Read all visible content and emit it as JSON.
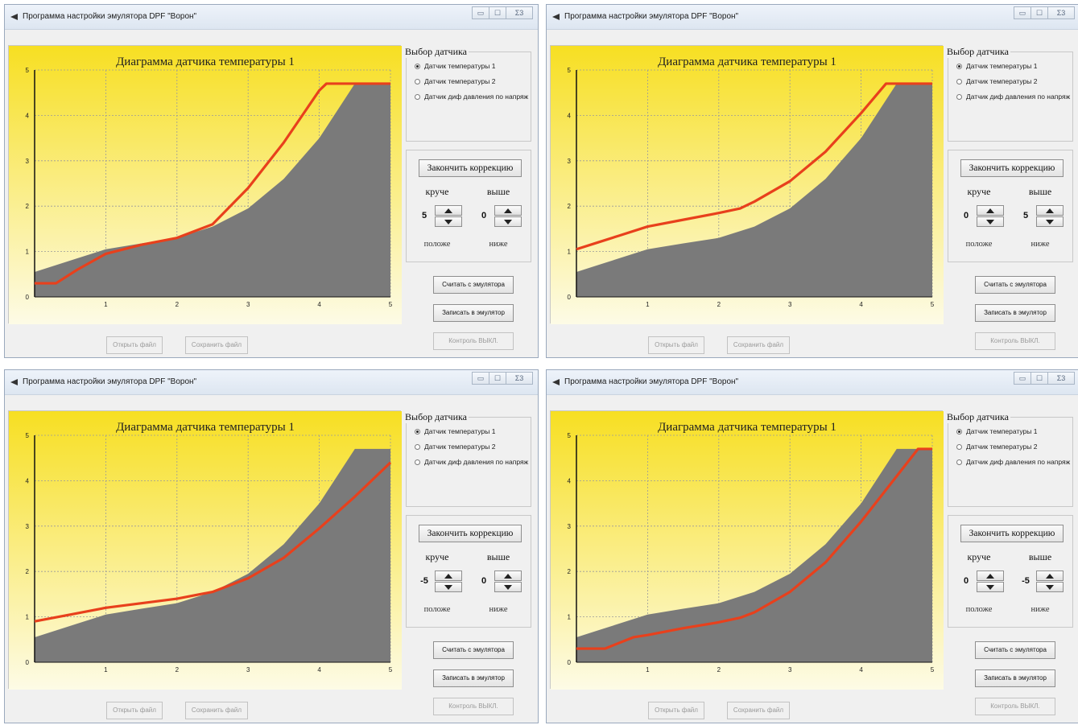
{
  "window_title": "Программа настройки эмулятора DPF \"Ворон\"",
  "window_buttons": {
    "minimize": "▭",
    "maximize": "☐",
    "close": "Σ3"
  },
  "chart_title": "Диаграмма датчика температуры 1",
  "sensor_group": {
    "title": "Выбор датчика",
    "options": [
      "Датчик температуры 1",
      "Датчик температуры 2",
      "Датчик диф давления по напряж"
    ],
    "selected": 0
  },
  "correction": {
    "finish_label": "Закончить коррекцию",
    "steep_label": "круче",
    "higher_label": "выше",
    "flatter_label": "положе",
    "lower_label": "ниже"
  },
  "buttons": {
    "read": "Считать с эмулятора",
    "write": "Записать в эмулятор",
    "control": "Контроль ВЫКЛ.",
    "open": "Открыть файл",
    "save": "Сохранить файл"
  },
  "colors": {
    "plot_top": "#f7df22",
    "plot_bottom": "#fdfbe6",
    "area": "#7a7a7a",
    "curve": "#e8401c"
  },
  "panels": [
    {
      "steep": "5",
      "higher": "0",
      "chart_data": {
        "type": "line",
        "x_ticks": [
          0,
          1,
          2,
          3,
          4,
          5
        ],
        "y_ticks": [
          0,
          1,
          2,
          3,
          4,
          5
        ],
        "xlim": [
          0,
          5
        ],
        "ylim": [
          0,
          5
        ],
        "base_area": [
          [
            0,
            0.55
          ],
          [
            0.3,
            0.7
          ],
          [
            0.6,
            0.85
          ],
          [
            1,
            1.05
          ],
          [
            1.5,
            1.18
          ],
          [
            2,
            1.3
          ],
          [
            2.5,
            1.55
          ],
          [
            3,
            1.95
          ],
          [
            3.5,
            2.6
          ],
          [
            4,
            3.5
          ],
          [
            4.5,
            4.7
          ],
          [
            5,
            4.7
          ]
        ],
        "curve": [
          [
            0,
            0.3
          ],
          [
            0.3,
            0.3
          ],
          [
            0.6,
            0.6
          ],
          [
            1,
            0.95
          ],
          [
            1.5,
            1.15
          ],
          [
            2,
            1.3
          ],
          [
            2.3,
            1.48
          ],
          [
            2.5,
            1.6
          ],
          [
            3,
            2.4
          ],
          [
            3.5,
            3.4
          ],
          [
            4,
            4.55
          ],
          [
            4.1,
            4.7
          ],
          [
            5,
            4.7
          ]
        ]
      }
    },
    {
      "steep": "0",
      "higher": "5",
      "chart_data": {
        "type": "line",
        "x_ticks": [
          0,
          1,
          2,
          3,
          4,
          5
        ],
        "y_ticks": [
          0,
          1,
          2,
          3,
          4,
          5
        ],
        "xlim": [
          0,
          5
        ],
        "ylim": [
          0,
          5
        ],
        "base_area": [
          [
            0,
            0.55
          ],
          [
            0.3,
            0.7
          ],
          [
            0.6,
            0.85
          ],
          [
            1,
            1.05
          ],
          [
            1.5,
            1.18
          ],
          [
            2,
            1.3
          ],
          [
            2.5,
            1.55
          ],
          [
            3,
            1.95
          ],
          [
            3.5,
            2.6
          ],
          [
            4,
            3.5
          ],
          [
            4.5,
            4.7
          ],
          [
            5,
            4.7
          ]
        ],
        "curve": [
          [
            0,
            1.05
          ],
          [
            0.3,
            1.2
          ],
          [
            0.6,
            1.35
          ],
          [
            1,
            1.55
          ],
          [
            1.5,
            1.7
          ],
          [
            2,
            1.85
          ],
          [
            2.3,
            1.95
          ],
          [
            2.5,
            2.1
          ],
          [
            3,
            2.55
          ],
          [
            3.5,
            3.2
          ],
          [
            4,
            4.05
          ],
          [
            4.35,
            4.7
          ],
          [
            5,
            4.7
          ]
        ]
      }
    },
    {
      "steep": "-5",
      "higher": "0",
      "chart_data": {
        "type": "line",
        "x_ticks": [
          0,
          1,
          2,
          3,
          4,
          5
        ],
        "y_ticks": [
          0,
          1,
          2,
          3,
          4,
          5
        ],
        "xlim": [
          0,
          5
        ],
        "ylim": [
          0,
          5
        ],
        "base_area": [
          [
            0,
            0.55
          ],
          [
            0.3,
            0.7
          ],
          [
            0.6,
            0.85
          ],
          [
            1,
            1.05
          ],
          [
            1.5,
            1.18
          ],
          [
            2,
            1.3
          ],
          [
            2.5,
            1.55
          ],
          [
            3,
            1.95
          ],
          [
            3.5,
            2.6
          ],
          [
            4,
            3.5
          ],
          [
            4.5,
            4.7
          ],
          [
            5,
            4.7
          ]
        ],
        "curve": [
          [
            0,
            0.9
          ],
          [
            0.5,
            1.05
          ],
          [
            1,
            1.2
          ],
          [
            1.5,
            1.3
          ],
          [
            2,
            1.4
          ],
          [
            2.5,
            1.55
          ],
          [
            3,
            1.85
          ],
          [
            3.5,
            2.3
          ],
          [
            4,
            2.95
          ],
          [
            4.5,
            3.65
          ],
          [
            5,
            4.4
          ]
        ]
      }
    },
    {
      "steep": "0",
      "higher": "-5",
      "chart_data": {
        "type": "line",
        "x_ticks": [
          0,
          1,
          2,
          3,
          4,
          5
        ],
        "y_ticks": [
          0,
          1,
          2,
          3,
          4,
          5
        ],
        "xlim": [
          0,
          5
        ],
        "ylim": [
          0,
          5
        ],
        "base_area": [
          [
            0,
            0.55
          ],
          [
            0.3,
            0.7
          ],
          [
            0.6,
            0.85
          ],
          [
            1,
            1.05
          ],
          [
            1.5,
            1.18
          ],
          [
            2,
            1.3
          ],
          [
            2.5,
            1.55
          ],
          [
            3,
            1.95
          ],
          [
            3.5,
            2.6
          ],
          [
            4,
            3.5
          ],
          [
            4.5,
            4.7
          ],
          [
            5,
            4.7
          ]
        ],
        "curve": [
          [
            0,
            0.3
          ],
          [
            0.4,
            0.3
          ],
          [
            0.8,
            0.55
          ],
          [
            1,
            0.6
          ],
          [
            1.5,
            0.75
          ],
          [
            2,
            0.88
          ],
          [
            2.3,
            0.98
          ],
          [
            2.5,
            1.1
          ],
          [
            3,
            1.55
          ],
          [
            3.5,
            2.2
          ],
          [
            4,
            3.1
          ],
          [
            4.5,
            4.1
          ],
          [
            4.8,
            4.7
          ],
          [
            5,
            4.7
          ]
        ]
      }
    }
  ]
}
